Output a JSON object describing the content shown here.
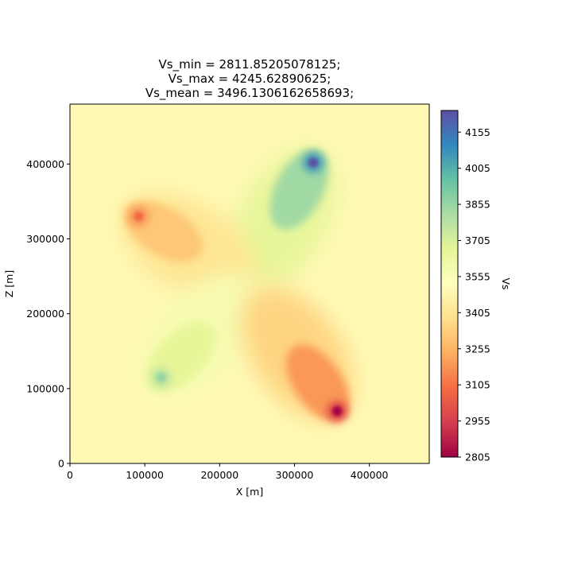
{
  "chart_data": {
    "type": "heatmap",
    "title_lines": [
      "Vs_min = 2811.85205078125;",
      "Vs_max = 4245.62890625;",
      "Vs_mean = 3496.1306162658693;"
    ],
    "xlabel": "X [m]",
    "ylabel": "Z [m]",
    "xlim": [
      0,
      480000
    ],
    "ylim": [
      0,
      480000
    ],
    "x_ticks": [
      0,
      100000,
      200000,
      300000,
      400000
    ],
    "y_ticks": [
      0,
      100000,
      200000,
      300000,
      400000
    ],
    "colorbar": {
      "label": "Vs",
      "colormap": "Spectral",
      "range": [
        2805,
        4245
      ],
      "ticks": [
        2805,
        2955,
        3105,
        3255,
        3405,
        3555,
        3705,
        3855,
        4005,
        4155
      ]
    },
    "background_value": 3496,
    "anomalies": [
      {
        "kind": "high",
        "peak_x": 325000,
        "peak_z": 402000,
        "peak_value": 4245
      },
      {
        "kind": "low",
        "peak_x": 92000,
        "peak_z": 330000,
        "peak_value": 3080
      },
      {
        "kind": "high",
        "peak_x": 122000,
        "peak_z": 115000,
        "peak_value": 3860
      },
      {
        "kind": "low",
        "peak_x": 357000,
        "peak_z": 70000,
        "peak_value": 2812
      }
    ]
  },
  "colors": {
    "spectral": [
      "#9e0142",
      "#d53e4f",
      "#f46d43",
      "#fdae61",
      "#fee08b",
      "#ffffbf",
      "#e6f598",
      "#abdda4",
      "#66c2a5",
      "#3288bd",
      "#5e4fa2"
    ]
  }
}
